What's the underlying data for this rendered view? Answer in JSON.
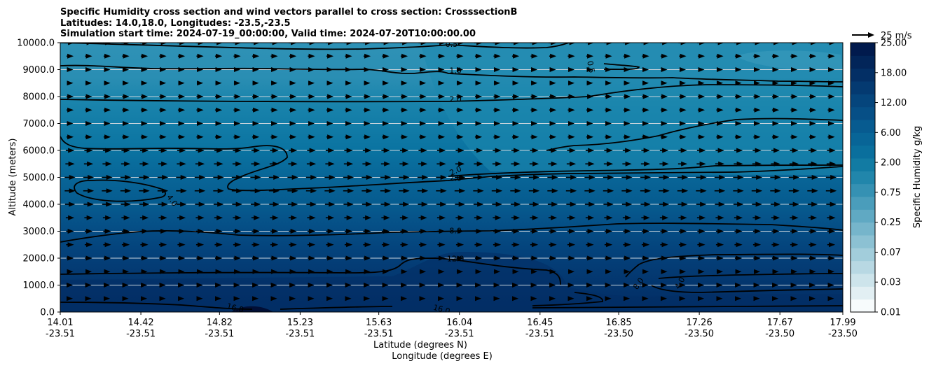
{
  "title": {
    "line1": "Specific Humidity cross section and wind vectors parallel to cross section: CrosssectionB",
    "line2": "Latitudes: 14.0,18.0, Longitudes: -23.5,-23.5",
    "line3": "Simulation start time: 2024-07-19_00:00:00, Valid time: 2024-07-20T10:00:00.00"
  },
  "chart_data": {
    "type": "heatmap",
    "ylabel": "Altitude (meters)",
    "xlabel_lat": "Latitude (degrees N)",
    "xlabel_lon": "Longitude (degrees E)",
    "ylim": [
      0,
      10000
    ],
    "xlim": [
      14.01,
      17.99
    ],
    "y_ticks": [
      "0.0",
      "1000.0",
      "2000.0",
      "3000.0",
      "4000.0",
      "5000.0",
      "6000.0",
      "7000.0",
      "8000.0",
      "9000.0",
      "10000.0"
    ],
    "x_ticks": [
      {
        "value": 14.01,
        "lat": "14.01",
        "lon": "-23.51"
      },
      {
        "value": 14.42,
        "lat": "14.42",
        "lon": "-23.51"
      },
      {
        "value": 14.82,
        "lat": "14.82",
        "lon": "-23.51"
      },
      {
        "value": 15.23,
        "lat": "15.23",
        "lon": "-23.51"
      },
      {
        "value": 15.63,
        "lat": "15.63",
        "lon": "-23.51"
      },
      {
        "value": 16.04,
        "lat": "16.04",
        "lon": "-23.51"
      },
      {
        "value": 16.45,
        "lat": "16.45",
        "lon": "-23.51"
      },
      {
        "value": 16.85,
        "lat": "16.85",
        "lon": "-23.50"
      },
      {
        "value": 17.26,
        "lat": "17.26",
        "lon": "-23.50"
      },
      {
        "value": 17.67,
        "lat": "17.67",
        "lon": "-23.50"
      },
      {
        "value": 17.99,
        "lat": "17.99",
        "lon": "-23.50"
      }
    ],
    "grid": "horizontal lines at y ticks",
    "colorbar": {
      "label": "Specific Humidity g/kg",
      "tick_labels": [
        "0.01",
        "0.03",
        "0.07",
        "0.25",
        "0.75",
        "2.00",
        "6.00",
        "12.00",
        "18.00",
        "25.00"
      ],
      "colors": [
        "#f7fbfc",
        "#e2eff3",
        "#cde4eb",
        "#b8d8e3",
        "#a2cddb",
        "#8cc1d3",
        "#76b5cb",
        "#60a9c3",
        "#4a9dbb",
        "#3591b3",
        "#2186ab",
        "#127ba3",
        "#0a6f9d",
        "#086597",
        "#075b90",
        "#064f86",
        "#05457c",
        "#043a71",
        "#032f65",
        "#022559",
        "#011a4d"
      ]
    },
    "contour_labels": [
      {
        "text": "0.5",
        "x": 16.0,
        "y": 9950,
        "rot": 0
      },
      {
        "text": "0.5",
        "x": 16.71,
        "y": 9100,
        "rot": 80
      },
      {
        "text": "1.0",
        "x": 16.02,
        "y": 8980,
        "rot": 0
      },
      {
        "text": "2.0",
        "x": 16.02,
        "y": 7910,
        "rot": 0
      },
      {
        "text": "2.0",
        "x": 16.02,
        "y": 5250,
        "rot": -25
      },
      {
        "text": "2.0",
        "x": 16.02,
        "y": 4980,
        "rot": 0
      },
      {
        "text": "4.0",
        "x": 14.58,
        "y": 4150,
        "rot": 55
      },
      {
        "text": "8.0",
        "x": 16.02,
        "y": 3020,
        "rot": 0
      },
      {
        "text": "12.0",
        "x": 16.02,
        "y": 1990,
        "rot": 0
      },
      {
        "text": "8.0",
        "x": 16.95,
        "y": 1060,
        "rot": -55
      },
      {
        "text": "4.0",
        "x": 17.16,
        "y": 1080,
        "rot": -60
      },
      {
        "text": "16.0",
        "x": 14.9,
        "y": 160,
        "rot": 15
      },
      {
        "text": "16.0",
        "x": 15.95,
        "y": 110,
        "rot": 15
      }
    ],
    "wind_levels": [
      {
        "y": 10000,
        "u": 6
      },
      {
        "y": 9500,
        "u": 4
      },
      {
        "y": 9000,
        "u": 3
      },
      {
        "y": 8500,
        "u": 3
      },
      {
        "y": 8000,
        "u": 4
      },
      {
        "y": 7500,
        "u": 4
      },
      {
        "y": 7000,
        "u": 3
      },
      {
        "y": 6500,
        "u": 4
      },
      {
        "y": 6000,
        "u": 6
      },
      {
        "y": 5500,
        "u": 7
      },
      {
        "y": 5000,
        "u": 9
      },
      {
        "y": 4500,
        "u": 9
      },
      {
        "y": 4000,
        "u": 8
      },
      {
        "y": 3500,
        "u": 6
      },
      {
        "y": 3000,
        "u": 5
      },
      {
        "y": 2500,
        "u": 5
      },
      {
        "y": 2000,
        "u": 4
      },
      {
        "y": 1500,
        "u": 3
      },
      {
        "y": 1000,
        "u": 2
      },
      {
        "y": 500,
        "u": 2
      }
    ],
    "wind_key": {
      "label": "25 m/s",
      "value": 25
    }
  }
}
